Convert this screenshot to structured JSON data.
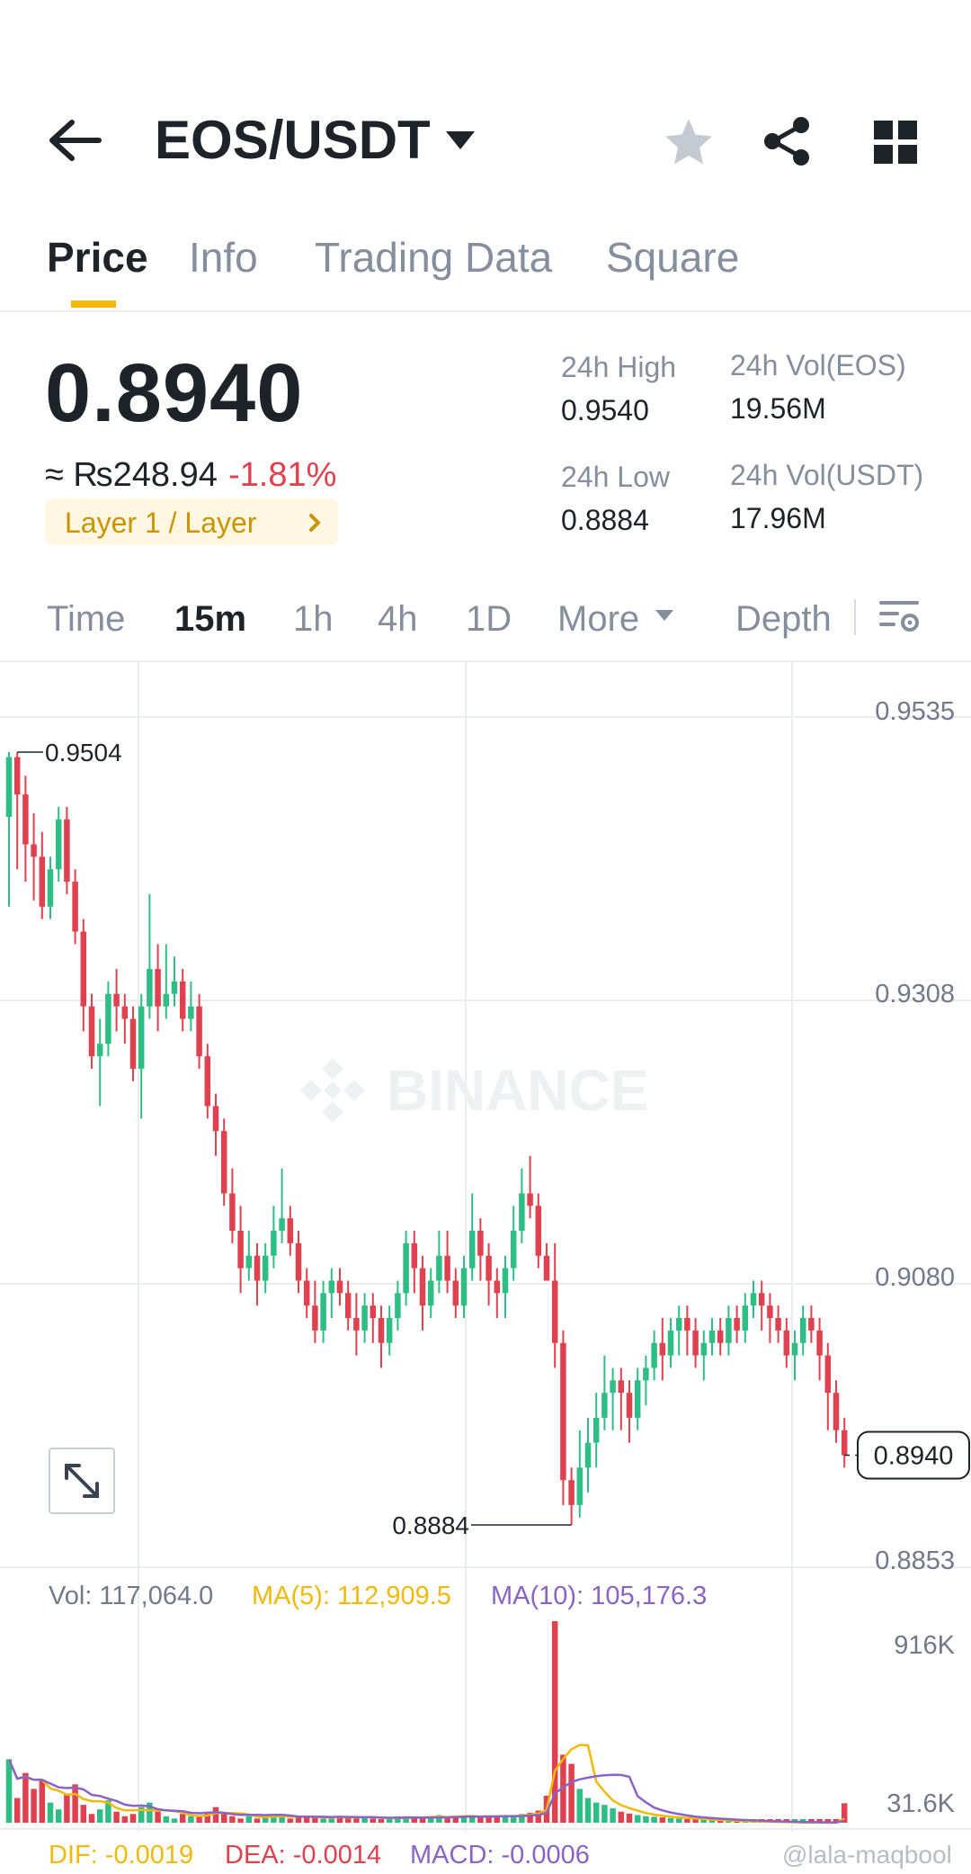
{
  "header": {
    "pair": "EOS/USDT",
    "icons": [
      "back-arrow-icon",
      "caret-down-icon",
      "star-icon",
      "share-icon",
      "grid-icon"
    ]
  },
  "tabs": [
    {
      "label": "Price",
      "active": true
    },
    {
      "label": "Info",
      "active": false
    },
    {
      "label": "Trading Data",
      "active": false
    },
    {
      "label": "Square",
      "active": false
    }
  ],
  "ticker": {
    "last_price": "0.8940",
    "fiat_price": "≈ ₨248.94",
    "change_pct": "-1.81%",
    "tag": "Layer 1 / Layer",
    "high_label": "24h High",
    "high_value": "0.9540",
    "low_label": "24h Low",
    "low_value": "0.8884",
    "vol_base_label": "24h Vol(EOS)",
    "vol_base_value": "19.56M",
    "vol_quote_label": "24h Vol(USDT)",
    "vol_quote_value": "17.96M"
  },
  "intervals": {
    "items": [
      "Time",
      "15m",
      "1h",
      "4h",
      "1D",
      "More"
    ],
    "active": "15m",
    "depth_label": "Depth"
  },
  "chart": {
    "watermark": "BINANCE",
    "price_axis": [
      "0.9535",
      "0.9308",
      "0.9080",
      "0.8853"
    ],
    "max_marker": "0.9504",
    "min_marker": "0.8884",
    "current_price_tag": "0.8940",
    "volume_axis": [
      "916K",
      "31.6K"
    ],
    "vol_legend": "Vol: 117,064.0",
    "ma5_legend": "MA(5): 112,909.5",
    "ma10_legend": "MA(10): 105,176.3",
    "dif_legend": "DIF: -0.0019",
    "dea_legend": "DEA: -0.0014",
    "macd_legend": "MACD: -0.0006",
    "credit": "@lala-maqbool",
    "colors": {
      "up": "#2ebd85",
      "down": "#e0414e",
      "ma5": "#f0b90b",
      "ma10": "#8a63c7",
      "grid": "#eaecef"
    }
  },
  "chart_data": {
    "type": "candlestick",
    "interval": "15m",
    "ylim": [
      0.8853,
      0.9535
    ],
    "high": 0.9504,
    "low": 0.8884,
    "last": 0.894,
    "candles": [
      [
        0.9452,
        0.95,
        0.9504,
        0.938
      ],
      [
        0.95,
        0.947,
        0.9504,
        0.941
      ],
      [
        0.947,
        0.943,
        0.9485,
        0.94
      ],
      [
        0.943,
        0.942,
        0.9455,
        0.9385
      ],
      [
        0.942,
        0.938,
        0.944,
        0.937
      ],
      [
        0.938,
        0.941,
        0.942,
        0.937
      ],
      [
        0.941,
        0.945,
        0.946,
        0.94
      ],
      [
        0.945,
        0.94,
        0.946,
        0.939
      ],
      [
        0.94,
        0.936,
        0.941,
        0.935
      ],
      [
        0.936,
        0.93,
        0.937,
        0.928
      ],
      [
        0.93,
        0.926,
        0.931,
        0.925
      ],
      [
        0.926,
        0.927,
        0.929,
        0.922
      ],
      [
        0.927,
        0.931,
        0.932,
        0.926
      ],
      [
        0.931,
        0.93,
        0.933,
        0.928
      ],
      [
        0.93,
        0.929,
        0.931,
        0.927
      ],
      [
        0.929,
        0.925,
        0.93,
        0.924
      ],
      [
        0.925,
        0.93,
        0.931,
        0.921
      ],
      [
        0.93,
        0.933,
        0.939,
        0.929
      ],
      [
        0.933,
        0.93,
        0.935,
        0.928
      ],
      [
        0.93,
        0.931,
        0.935,
        0.929
      ],
      [
        0.931,
        0.932,
        0.934,
        0.93
      ],
      [
        0.932,
        0.929,
        0.933,
        0.928
      ],
      [
        0.929,
        0.93,
        0.932,
        0.928
      ],
      [
        0.93,
        0.926,
        0.931,
        0.925
      ],
      [
        0.926,
        0.922,
        0.927,
        0.921
      ],
      [
        0.922,
        0.92,
        0.923,
        0.918
      ],
      [
        0.92,
        0.915,
        0.921,
        0.914
      ],
      [
        0.915,
        0.912,
        0.917,
        0.911
      ],
      [
        0.912,
        0.909,
        0.914,
        0.907
      ],
      [
        0.909,
        0.91,
        0.912,
        0.908
      ],
      [
        0.91,
        0.908,
        0.911,
        0.906
      ],
      [
        0.908,
        0.91,
        0.911,
        0.907
      ],
      [
        0.91,
        0.912,
        0.914,
        0.909
      ],
      [
        0.912,
        0.913,
        0.917,
        0.911
      ],
      [
        0.913,
        0.911,
        0.914,
        0.91
      ],
      [
        0.911,
        0.908,
        0.912,
        0.907
      ],
      [
        0.908,
        0.906,
        0.909,
        0.905
      ],
      [
        0.906,
        0.904,
        0.908,
        0.903
      ],
      [
        0.904,
        0.907,
        0.908,
        0.903
      ],
      [
        0.907,
        0.908,
        0.909,
        0.905
      ],
      [
        0.908,
        0.907,
        0.909,
        0.906
      ],
      [
        0.907,
        0.905,
        0.908,
        0.904
      ],
      [
        0.905,
        0.904,
        0.907,
        0.902
      ],
      [
        0.904,
        0.906,
        0.907,
        0.903
      ],
      [
        0.906,
        0.905,
        0.907,
        0.903
      ],
      [
        0.905,
        0.903,
        0.906,
        0.901
      ],
      [
        0.903,
        0.905,
        0.906,
        0.902
      ],
      [
        0.905,
        0.907,
        0.908,
        0.904
      ],
      [
        0.907,
        0.911,
        0.912,
        0.906
      ],
      [
        0.911,
        0.909,
        0.912,
        0.907
      ],
      [
        0.909,
        0.906,
        0.91,
        0.904
      ],
      [
        0.906,
        0.908,
        0.909,
        0.905
      ],
      [
        0.908,
        0.91,
        0.912,
        0.907
      ],
      [
        0.91,
        0.908,
        0.912,
        0.907
      ],
      [
        0.908,
        0.906,
        0.909,
        0.905
      ],
      [
        0.906,
        0.909,
        0.91,
        0.905
      ],
      [
        0.909,
        0.912,
        0.915,
        0.908
      ],
      [
        0.912,
        0.91,
        0.913,
        0.908
      ],
      [
        0.91,
        0.908,
        0.911,
        0.906
      ],
      [
        0.908,
        0.907,
        0.909,
        0.905
      ],
      [
        0.907,
        0.909,
        0.91,
        0.905
      ],
      [
        0.909,
        0.912,
        0.914,
        0.908
      ],
      [
        0.912,
        0.915,
        0.917,
        0.911
      ],
      [
        0.915,
        0.914,
        0.918,
        0.913
      ],
      [
        0.914,
        0.91,
        0.915,
        0.909
      ],
      [
        0.91,
        0.908,
        0.911,
        0.908
      ],
      [
        0.908,
        0.903,
        0.911,
        0.901
      ],
      [
        0.903,
        0.892,
        0.904,
        0.89
      ],
      [
        0.892,
        0.89,
        0.893,
        0.8884
      ],
      [
        0.89,
        0.893,
        0.896,
        0.889
      ],
      [
        0.893,
        0.895,
        0.897,
        0.891
      ],
      [
        0.895,
        0.897,
        0.899,
        0.893
      ],
      [
        0.897,
        0.899,
        0.902,
        0.896
      ],
      [
        0.899,
        0.9,
        0.901,
        0.896
      ],
      [
        0.9,
        0.899,
        0.901,
        0.896
      ],
      [
        0.899,
        0.897,
        0.9,
        0.895
      ],
      [
        0.897,
        0.9,
        0.901,
        0.896
      ],
      [
        0.9,
        0.901,
        0.902,
        0.898
      ],
      [
        0.901,
        0.903,
        0.904,
        0.9
      ],
      [
        0.903,
        0.902,
        0.905,
        0.9
      ],
      [
        0.902,
        0.904,
        0.905,
        0.901
      ],
      [
        0.904,
        0.905,
        0.906,
        0.902
      ],
      [
        0.905,
        0.904,
        0.906,
        0.902
      ],
      [
        0.904,
        0.902,
        0.905,
        0.901
      ],
      [
        0.902,
        0.903,
        0.904,
        0.9
      ],
      [
        0.903,
        0.904,
        0.905,
        0.902
      ],
      [
        0.904,
        0.903,
        0.905,
        0.902
      ],
      [
        0.903,
        0.905,
        0.906,
        0.902
      ],
      [
        0.905,
        0.904,
        0.906,
        0.903
      ],
      [
        0.904,
        0.906,
        0.907,
        0.903
      ],
      [
        0.906,
        0.907,
        0.908,
        0.905
      ],
      [
        0.907,
        0.906,
        0.908,
        0.904
      ],
      [
        0.906,
        0.905,
        0.907,
        0.903
      ],
      [
        0.905,
        0.904,
        0.906,
        0.903
      ],
      [
        0.904,
        0.902,
        0.905,
        0.901
      ],
      [
        0.902,
        0.903,
        0.904,
        0.9
      ],
      [
        0.903,
        0.905,
        0.906,
        0.902
      ],
      [
        0.905,
        0.904,
        0.906,
        0.903
      ],
      [
        0.904,
        0.902,
        0.905,
        0.9
      ],
      [
        0.902,
        0.899,
        0.903,
        0.896
      ],
      [
        0.899,
        0.896,
        0.9,
        0.895
      ],
      [
        0.896,
        0.894,
        0.897,
        0.893
      ]
    ],
    "volume_ylim": [
      31600,
      916000
    ],
    "volumes": [
      310000,
      140000,
      250000,
      180000,
      220000,
      120000,
      90000,
      160000,
      200000,
      110000,
      70000,
      90000,
      130000,
      80000,
      60000,
      70000,
      100000,
      120000,
      80000,
      60000,
      50000,
      70000,
      60000,
      60000,
      80000,
      100000,
      70000,
      60000,
      50000,
      60000,
      50000,
      60000,
      70000,
      60000,
      50000,
      55000,
      60000,
      60000,
      50000,
      50000,
      60000,
      55000,
      60000,
      55000,
      50000,
      45000,
      50000,
      60000,
      60000,
      55000,
      50000,
      60000,
      65000,
      55000,
      60000,
      60000,
      65000,
      55000,
      60000,
      60000,
      65000,
      60000,
      70000,
      75000,
      85000,
      150000,
      916000,
      330000,
      290000,
      180000,
      140000,
      120000,
      110000,
      95000,
      80000,
      72000,
      65000,
      60000,
      58000,
      55000,
      52000,
      50000,
      48000,
      45000,
      43000,
      42000,
      40000,
      39000,
      38000,
      37000,
      36000,
      35000,
      34000,
      33000,
      33000,
      32500,
      32000,
      32000,
      31800,
      31700,
      31600,
      117064
    ]
  }
}
